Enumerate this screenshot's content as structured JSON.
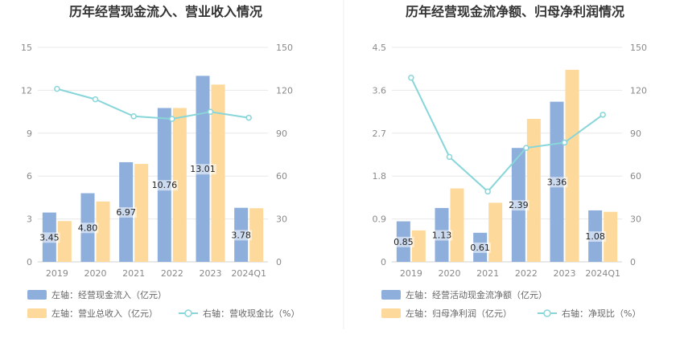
{
  "chart_data": [
    {
      "type": "bar",
      "title": "历年经营现金流入、营业收入情况",
      "categories": [
        "2019",
        "2020",
        "2021",
        "2022",
        "2023",
        "2024Q1"
      ],
      "left_axis": {
        "ylim": [
          0,
          15
        ],
        "ticks": [
          "0",
          "3",
          "6",
          "9",
          "12",
          "15"
        ]
      },
      "right_axis": {
        "ylim": [
          0,
          150
        ],
        "ticks": [
          "0",
          "30",
          "60",
          "90",
          "120",
          "150"
        ]
      },
      "grid": true,
      "legend_position": "bottom",
      "series": [
        {
          "name": "左轴：经营现金流入（亿元）",
          "type": "bar",
          "axis": "left",
          "color": "#8eaedb",
          "values": [
            3.45,
            4.8,
            6.97,
            10.76,
            13.01,
            3.78
          ],
          "labels": [
            "3.45",
            "4.80",
            "6.97",
            "10.76",
            "13.01",
            "3.78"
          ]
        },
        {
          "name": "左轴：营业总收入（亿元）",
          "type": "bar",
          "axis": "left",
          "color": "#fdd99b",
          "values": [
            2.85,
            4.22,
            6.85,
            10.76,
            12.4,
            3.75
          ]
        },
        {
          "name": "右轴：营收现金比（%）",
          "type": "line",
          "axis": "right",
          "color": "#88d6d9",
          "values": [
            121,
            113.7,
            101.8,
            100.0,
            104.9,
            100.8
          ]
        }
      ]
    },
    {
      "type": "bar",
      "title": "历年经营现金流净额、归母净利润情况",
      "categories": [
        "2019",
        "2020",
        "2021",
        "2022",
        "2023",
        "2024Q1"
      ],
      "left_axis": {
        "ylim": [
          0,
          4.5
        ],
        "ticks": [
          "0",
          "0.9",
          "1.8",
          "2.7",
          "3.6",
          "4.5"
        ]
      },
      "right_axis": {
        "ylim": [
          0,
          150
        ],
        "ticks": [
          "0",
          "30",
          "60",
          "90",
          "120",
          "150"
        ]
      },
      "grid": true,
      "legend_position": "bottom",
      "series": [
        {
          "name": "左轴：经营活动现金流净额（亿元）",
          "type": "bar",
          "axis": "left",
          "color": "#8eaedb",
          "values": [
            0.85,
            1.13,
            0.61,
            2.39,
            3.36,
            1.08
          ],
          "labels": [
            "0.85",
            "1.13",
            "0.61",
            "2.39",
            "3.36",
            "1.08"
          ]
        },
        {
          "name": "左轴：归母净利润（亿元）",
          "type": "bar",
          "axis": "left",
          "color": "#fdd99b",
          "values": [
            0.66,
            1.54,
            1.24,
            3.0,
            4.03,
            1.05
          ]
        },
        {
          "name": "右轴：净现比（%）",
          "type": "line",
          "axis": "right",
          "color": "#88d6d9",
          "values": [
            128.8,
            73.4,
            49.2,
            79.7,
            83.4,
            102.9
          ]
        }
      ]
    }
  ]
}
